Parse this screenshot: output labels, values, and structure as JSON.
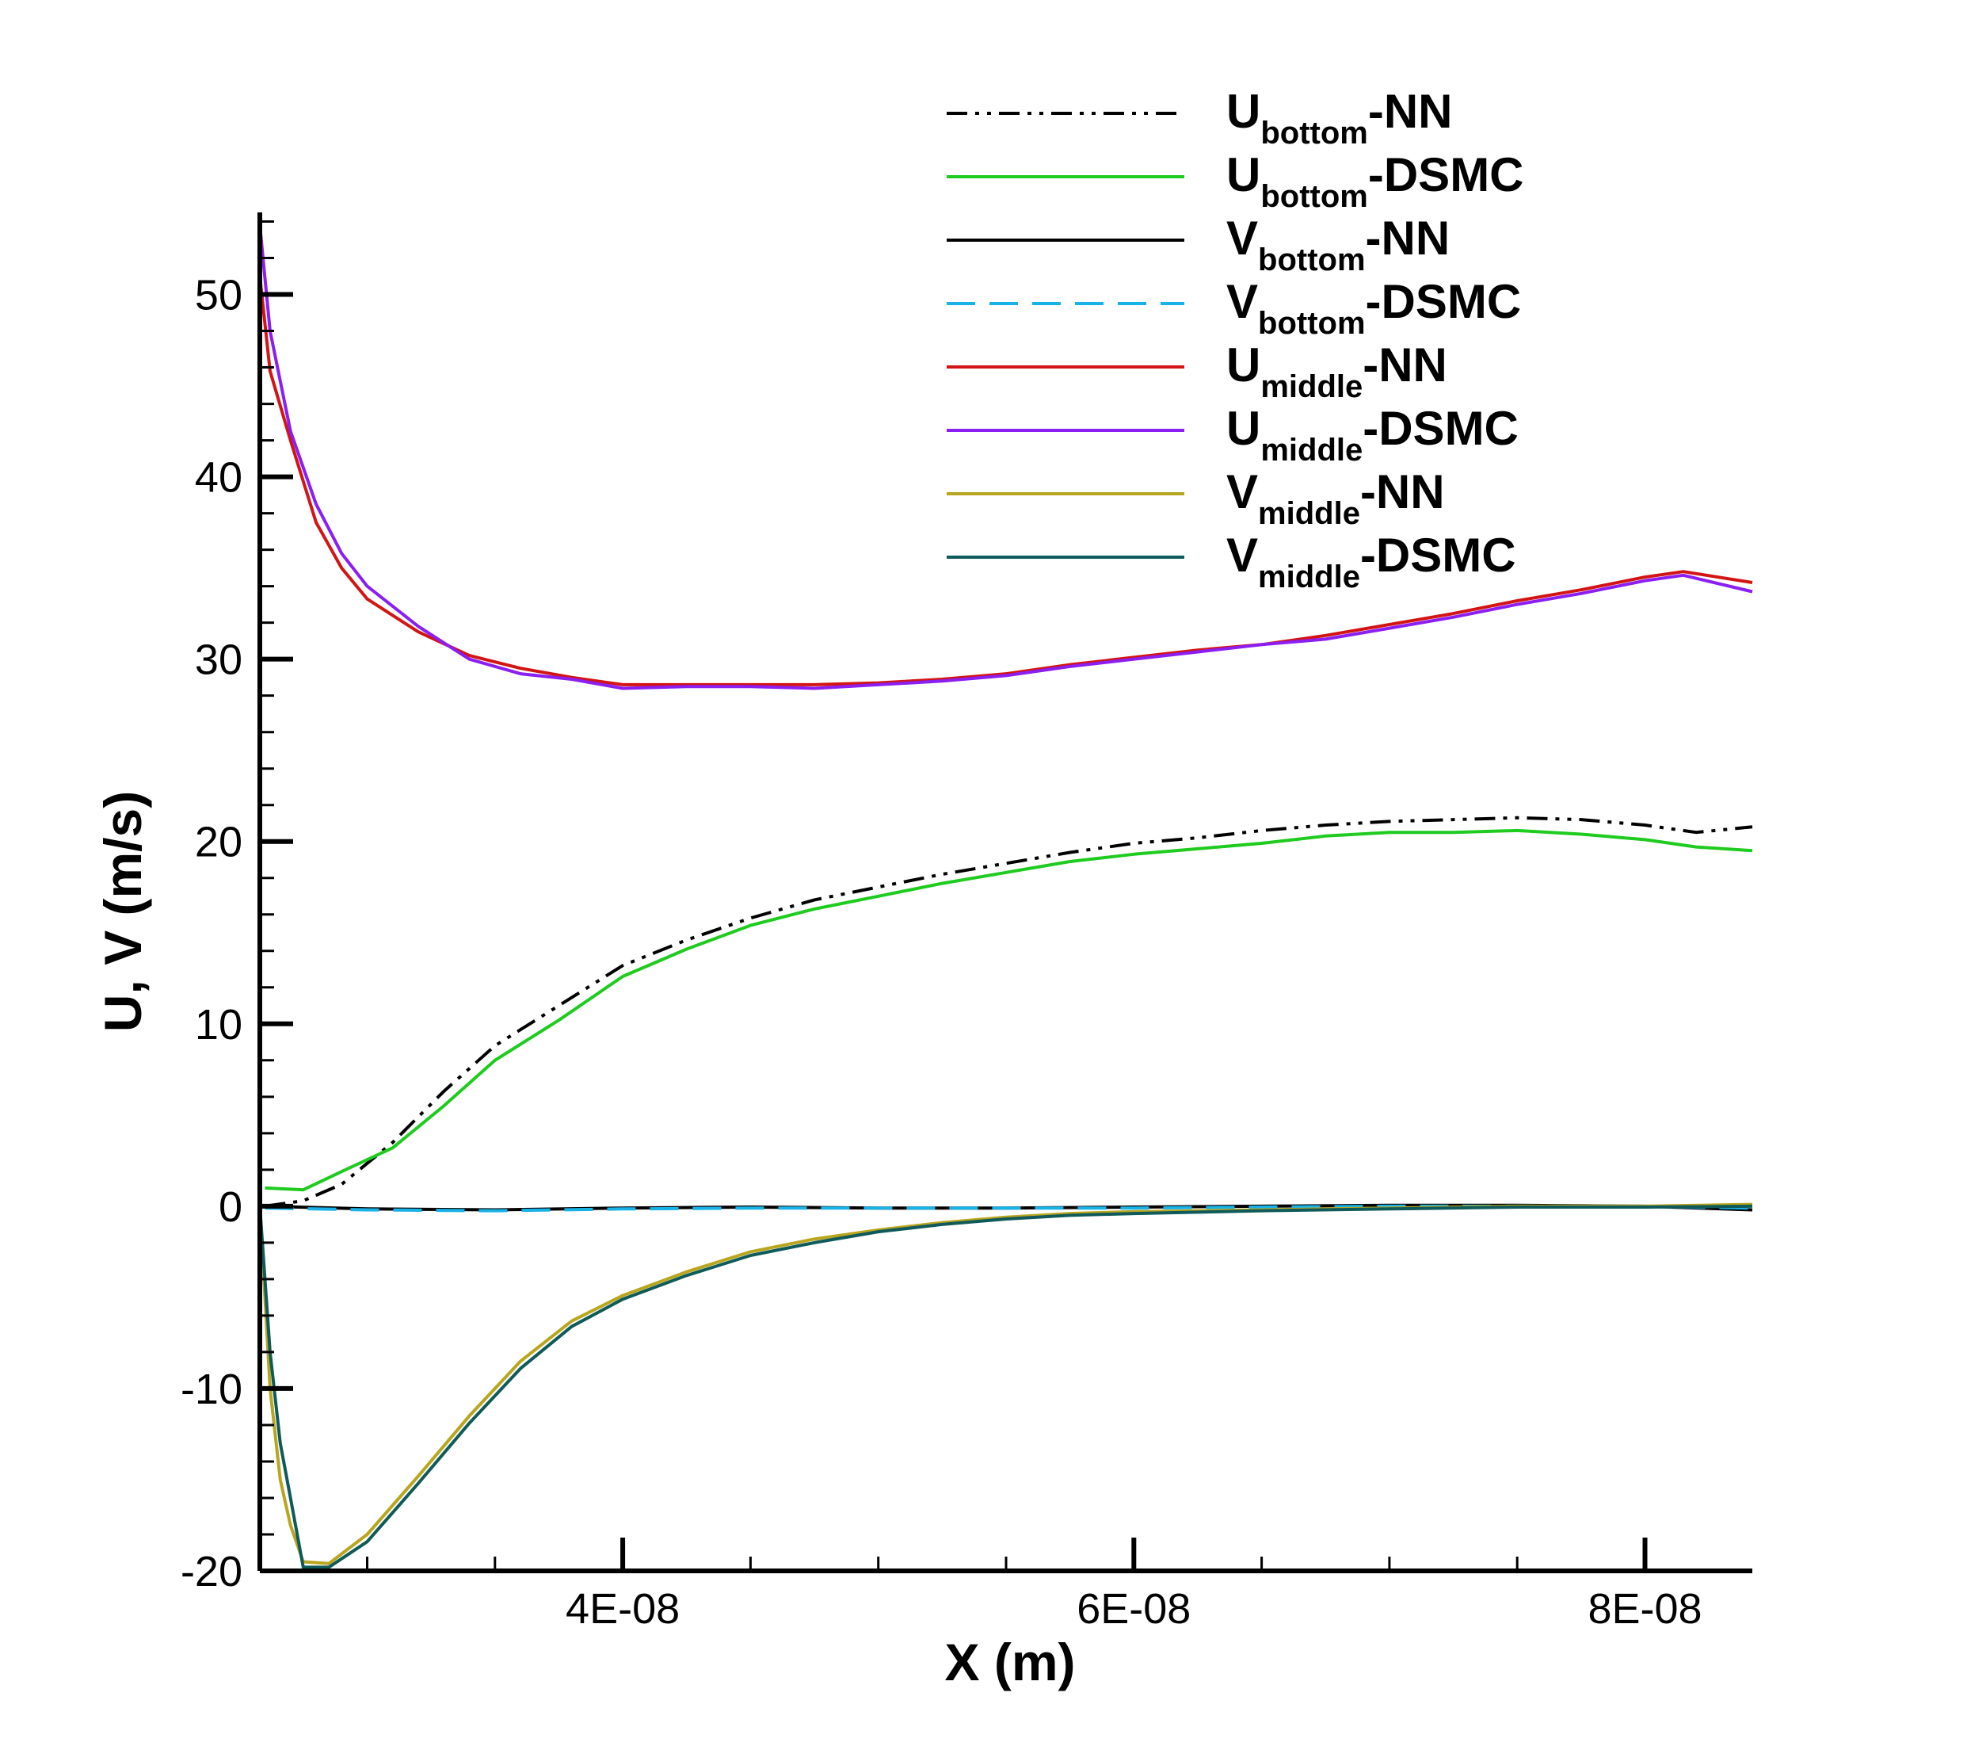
{
  "chart_data": {
    "type": "line",
    "title": "",
    "xlabel": "X (m)",
    "ylabel": "U, V (m/s)",
    "xlim": [
      2.58e-08,
      8.42e-08
    ],
    "ylim": [
      -20,
      54.5
    ],
    "x_ticks": [
      {
        "value": 4e-08,
        "label": "4E-08"
      },
      {
        "value": 6e-08,
        "label": "6E-08"
      },
      {
        "value": 8e-08,
        "label": "8E-08"
      }
    ],
    "y_ticks": [
      {
        "value": -20,
        "label": "-20"
      },
      {
        "value": -10,
        "label": "-10"
      },
      {
        "value": 0,
        "label": "0"
      },
      {
        "value": 10,
        "label": "10"
      },
      {
        "value": 20,
        "label": "20"
      },
      {
        "value": 30,
        "label": "30"
      },
      {
        "value": 40,
        "label": "40"
      },
      {
        "value": 50,
        "label": "50"
      }
    ],
    "legend_position": "top-right",
    "series": [
      {
        "id": "u-bottom-nn",
        "main": "U",
        "sub": "bottom",
        "suffix": "-NN",
        "color": "#000000",
        "dash": "dashdotdot",
        "x": [
          2.6e-08,
          2.75e-08,
          2.9e-08,
          3.1e-08,
          3.3e-08,
          3.5e-08,
          3.75e-08,
          4e-08,
          4.25e-08,
          4.5e-08,
          4.75e-08,
          5e-08,
          5.25e-08,
          5.5e-08,
          5.75e-08,
          6e-08,
          6.25e-08,
          6.5e-08,
          6.75e-08,
          7e-08,
          7.25e-08,
          7.5e-08,
          7.75e-08,
          8e-08,
          8.2e-08,
          8.42e-08
        ],
        "values": [
          0.0,
          0.3,
          1.2,
          3.5,
          6.3,
          8.8,
          11.0,
          13.2,
          14.6,
          15.8,
          16.8,
          17.5,
          18.2,
          18.8,
          19.4,
          19.9,
          20.2,
          20.6,
          20.9,
          21.1,
          21.2,
          21.3,
          21.2,
          20.9,
          20.5,
          20.8
        ]
      },
      {
        "id": "u-bottom-dsmc",
        "main": "U",
        "sub": "bottom",
        "suffix": "-DSMC",
        "color": "#1ecb1e",
        "dash": "solid",
        "x": [
          2.6e-08,
          2.75e-08,
          2.9e-08,
          3.1e-08,
          3.3e-08,
          3.5e-08,
          3.75e-08,
          4e-08,
          4.25e-08,
          4.5e-08,
          4.75e-08,
          5e-08,
          5.25e-08,
          5.5e-08,
          5.75e-08,
          6e-08,
          6.25e-08,
          6.5e-08,
          6.75e-08,
          7e-08,
          7.25e-08,
          7.5e-08,
          7.75e-08,
          8e-08,
          8.2e-08,
          8.42e-08
        ],
        "values": [
          1.0,
          0.9,
          1.9,
          3.2,
          5.5,
          8.0,
          10.2,
          12.6,
          14.1,
          15.4,
          16.3,
          17.0,
          17.7,
          18.3,
          18.9,
          19.3,
          19.6,
          19.9,
          20.3,
          20.5,
          20.5,
          20.6,
          20.4,
          20.1,
          19.7,
          19.5
        ]
      },
      {
        "id": "v-bottom-nn",
        "main": "V",
        "sub": "bottom",
        "suffix": "-NN",
        "color": "#000000",
        "dash": "solid",
        "x": [
          2.6e-08,
          3e-08,
          3.5e-08,
          4e-08,
          4.5e-08,
          5e-08,
          5.5e-08,
          6e-08,
          6.5e-08,
          7e-08,
          7.5e-08,
          8e-08,
          8.42e-08
        ],
        "values": [
          0.0,
          -0.15,
          -0.2,
          -0.1,
          -0.05,
          -0.1,
          -0.1,
          -0.05,
          0.0,
          0.05,
          0.05,
          0.0,
          -0.2
        ]
      },
      {
        "id": "v-bottom-dsmc",
        "main": "V",
        "sub": "bottom",
        "suffix": "-DSMC",
        "color": "#19b2e6",
        "dash": "dashed",
        "x": [
          2.6e-08,
          3e-08,
          3.5e-08,
          4e-08,
          4.5e-08,
          5e-08,
          5.5e-08,
          6e-08,
          6.5e-08,
          7e-08,
          7.5e-08,
          8e-08,
          8.42e-08
        ],
        "values": [
          -0.1,
          -0.2,
          -0.25,
          -0.15,
          -0.1,
          -0.1,
          -0.1,
          -0.1,
          -0.05,
          0.0,
          0.0,
          0.0,
          -0.1
        ]
      },
      {
        "id": "u-middle-nn",
        "main": "U",
        "sub": "middle",
        "suffix": "-NN",
        "color": "#d31414",
        "dash": "solid",
        "x": [
          2.58e-08,
          2.62e-08,
          2.7e-08,
          2.8e-08,
          2.9e-08,
          3e-08,
          3.2e-08,
          3.4e-08,
          3.6e-08,
          3.8e-08,
          4e-08,
          4.25e-08,
          4.5e-08,
          4.75e-08,
          5e-08,
          5.25e-08,
          5.5e-08,
          5.75e-08,
          6e-08,
          6.25e-08,
          6.5e-08,
          6.75e-08,
          7e-08,
          7.25e-08,
          7.5e-08,
          7.75e-08,
          8e-08,
          8.15e-08,
          8.42e-08
        ],
        "values": [
          51.0,
          45.8,
          42.0,
          37.5,
          35.0,
          33.3,
          31.5,
          30.2,
          29.5,
          29.0,
          28.6,
          28.6,
          28.6,
          28.6,
          28.7,
          28.9,
          29.2,
          29.7,
          30.1,
          30.5,
          30.8,
          31.3,
          31.9,
          32.5,
          33.2,
          33.8,
          34.5,
          34.8,
          34.2
        ]
      },
      {
        "id": "u-middle-dsmc",
        "main": "U",
        "sub": "middle",
        "suffix": "-DSMC",
        "color": "#8b1ef0",
        "dash": "solid",
        "x": [
          2.58e-08,
          2.62e-08,
          2.7e-08,
          2.8e-08,
          2.9e-08,
          3e-08,
          3.2e-08,
          3.4e-08,
          3.6e-08,
          3.8e-08,
          4e-08,
          4.25e-08,
          4.5e-08,
          4.75e-08,
          5e-08,
          5.25e-08,
          5.5e-08,
          5.75e-08,
          6e-08,
          6.25e-08,
          6.5e-08,
          6.75e-08,
          7e-08,
          7.25e-08,
          7.5e-08,
          7.75e-08,
          8e-08,
          8.15e-08,
          8.42e-08
        ],
        "values": [
          53.8,
          48.0,
          42.5,
          38.5,
          35.8,
          34.0,
          31.8,
          30.0,
          29.2,
          28.9,
          28.4,
          28.5,
          28.5,
          28.4,
          28.6,
          28.8,
          29.1,
          29.6,
          30.0,
          30.4,
          30.8,
          31.1,
          31.7,
          32.3,
          33.0,
          33.6,
          34.3,
          34.6,
          33.7
        ]
      },
      {
        "id": "v-middle-nn",
        "main": "V",
        "sub": "middle",
        "suffix": "-NN",
        "color": "#b8a61e",
        "dash": "solid",
        "x": [
          2.58e-08,
          2.62e-08,
          2.66e-08,
          2.7e-08,
          2.75e-08,
          2.85e-08,
          3e-08,
          3.2e-08,
          3.4e-08,
          3.6e-08,
          3.8e-08,
          4e-08,
          4.25e-08,
          4.5e-08,
          4.75e-08,
          5e-08,
          5.25e-08,
          5.5e-08,
          5.75e-08,
          6e-08,
          6.5e-08,
          7e-08,
          7.5e-08,
          8e-08,
          8.42e-08
        ],
        "values": [
          0.0,
          -10.0,
          -15.0,
          -17.5,
          -19.5,
          -19.6,
          -18.0,
          -14.8,
          -11.5,
          -8.5,
          -6.3,
          -4.9,
          -3.6,
          -2.5,
          -1.8,
          -1.3,
          -0.9,
          -0.6,
          -0.4,
          -0.3,
          -0.2,
          -0.1,
          0.0,
          0.0,
          0.1
        ]
      },
      {
        "id": "v-middle-dsmc",
        "main": "V",
        "sub": "middle",
        "suffix": "-DSMC",
        "color": "#0f5a5a",
        "dash": "solid",
        "x": [
          2.58e-08,
          2.62e-08,
          2.66e-08,
          2.7e-08,
          2.75e-08,
          2.85e-08,
          3e-08,
          3.2e-08,
          3.4e-08,
          3.6e-08,
          3.8e-08,
          4e-08,
          4.25e-08,
          4.5e-08,
          4.75e-08,
          5e-08,
          5.25e-08,
          5.5e-08,
          5.75e-08,
          6e-08,
          6.5e-08,
          7e-08,
          7.5e-08,
          8e-08,
          8.42e-08
        ],
        "values": [
          0.0,
          -8.0,
          -13.0,
          -16.0,
          -19.8,
          -19.8,
          -18.4,
          -15.2,
          -11.9,
          -8.9,
          -6.6,
          -5.1,
          -3.8,
          -2.7,
          -2.0,
          -1.4,
          -1.0,
          -0.7,
          -0.5,
          -0.4,
          -0.25,
          -0.15,
          -0.05,
          -0.05,
          0.0
        ]
      }
    ]
  }
}
